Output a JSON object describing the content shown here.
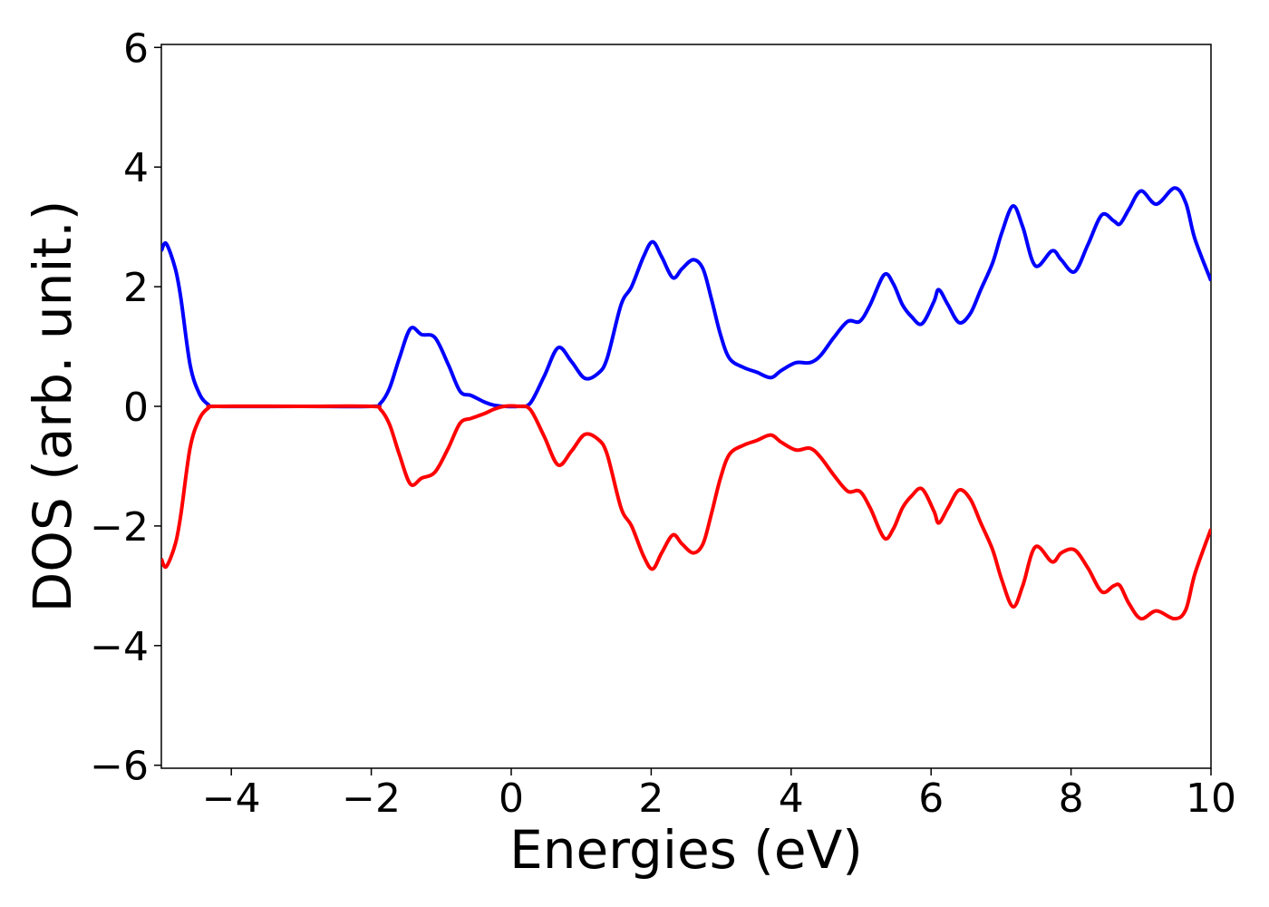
{
  "chart_data": {
    "type": "line",
    "xlabel": "Energies (eV)",
    "ylabel": "DOS (arb. unit.)",
    "xlim": [
      -5,
      10
    ],
    "xticks": [
      {
        "value": -4,
        "label": "−4"
      },
      {
        "value": -2,
        "label": "−2"
      },
      0,
      2,
      4,
      6,
      8,
      10
    ],
    "ylim": [
      -6.05,
      6.05
    ],
    "yticks": [
      {
        "value": -6,
        "label": "−6"
      },
      {
        "value": -4,
        "label": "−4"
      },
      {
        "value": -2,
        "label": "−2"
      },
      0,
      2,
      4,
      6
    ],
    "grid": false,
    "x": [
      -5,
      -4.93,
      -4.8,
      -4.72,
      -4.59,
      -4.46,
      -4.33,
      -4.2,
      -3,
      -2,
      -1.87,
      -1.74,
      -1.6,
      -1.44,
      -1.28,
      -1.09,
      -0.9,
      -0.73,
      -0.57,
      -0.38,
      -0.25,
      -0.1,
      0.1,
      0.27,
      0.47,
      0.67,
      0.86,
      1.05,
      1.24,
      1.37,
      1.57,
      1.72,
      1.89,
      2.02,
      2.15,
      2.31,
      2.44,
      2.6,
      2.74,
      2.86,
      2.99,
      3.12,
      3.32,
      3.51,
      3.71,
      3.86,
      4.07,
      4.27,
      4.42,
      4.61,
      4.81,
      4.98,
      5.13,
      5.33,
      5.46,
      5.59,
      5.72,
      5.87,
      6.04,
      6.11,
      6.24,
      6.4,
      6.56,
      6.71,
      6.88,
      7.01,
      7.17,
      7.31,
      7.49,
      7.73,
      7.86,
      8.05,
      8.24,
      8.44,
      8.61,
      8.7,
      8.83,
      9.0,
      9.22,
      9.48,
      9.64,
      9.77,
      10
    ],
    "series": [
      {
        "color": "#0000ff",
        "values": [
          2.6,
          2.72,
          2.3,
          1.8,
          0.7,
          0.22,
          0.03,
          0,
          0,
          0,
          0.05,
          0.3,
          0.8,
          1.3,
          1.2,
          1.15,
          0.7,
          0.25,
          0.18,
          0.07,
          0.02,
          0,
          0,
          0.05,
          0.5,
          0.98,
          0.75,
          0.47,
          0.55,
          0.8,
          1.7,
          2.0,
          2.5,
          2.75,
          2.5,
          2.15,
          2.3,
          2.45,
          2.3,
          1.8,
          1.2,
          0.8,
          0.65,
          0.57,
          0.48,
          0.6,
          0.73,
          0.73,
          0.85,
          1.15,
          1.42,
          1.42,
          1.7,
          2.2,
          2.05,
          1.7,
          1.5,
          1.38,
          1.75,
          1.95,
          1.7,
          1.4,
          1.55,
          1.95,
          2.4,
          2.9,
          3.35,
          3.0,
          2.35,
          2.6,
          2.45,
          2.25,
          2.7,
          3.2,
          3.1,
          3.05,
          3.3,
          3.6,
          3.38,
          3.65,
          3.4,
          2.8,
          2.1
        ]
      },
      {
        "color": "#ff0000",
        "values": [
          -2.55,
          -2.68,
          -2.3,
          -1.8,
          -0.7,
          -0.22,
          -0.03,
          0,
          0,
          0,
          -0.05,
          -0.3,
          -0.8,
          -1.3,
          -1.2,
          -1.1,
          -0.7,
          -0.28,
          -0.2,
          -0.12,
          -0.05,
          0,
          0,
          -0.05,
          -0.5,
          -0.98,
          -0.75,
          -0.47,
          -0.55,
          -0.8,
          -1.7,
          -2.0,
          -2.5,
          -2.72,
          -2.45,
          -2.15,
          -2.3,
          -2.45,
          -2.3,
          -1.8,
          -1.2,
          -0.8,
          -0.65,
          -0.57,
          -0.48,
          -0.6,
          -0.73,
          -0.7,
          -0.85,
          -1.15,
          -1.42,
          -1.42,
          -1.7,
          -2.2,
          -2.05,
          -1.7,
          -1.5,
          -1.38,
          -1.75,
          -1.95,
          -1.7,
          -1.4,
          -1.55,
          -1.95,
          -2.4,
          -2.9,
          -3.35,
          -3.0,
          -2.35,
          -2.6,
          -2.45,
          -2.4,
          -2.7,
          -3.1,
          -3.0,
          -3.0,
          -3.3,
          -3.55,
          -3.42,
          -3.55,
          -3.4,
          -2.8,
          -2.05
        ]
      }
    ]
  }
}
